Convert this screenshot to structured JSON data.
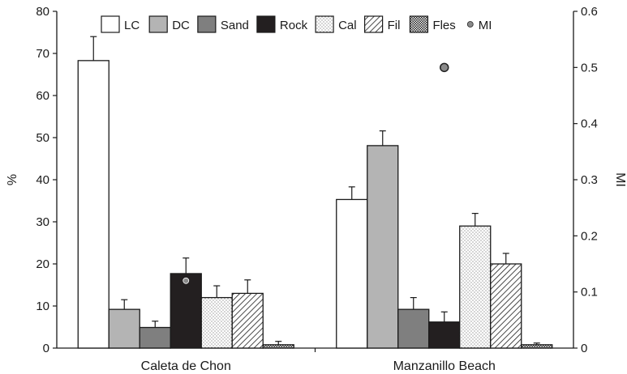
{
  "chart_data": {
    "type": "bar",
    "categories": [
      "Caleta de Chon",
      "Manzanillo Beach"
    ],
    "ylabel": "%",
    "y2label": "MI",
    "ylim": [
      0,
      80
    ],
    "y2lim": [
      0,
      0.6
    ],
    "yticks": [
      0,
      10,
      20,
      30,
      40,
      50,
      60,
      70,
      80
    ],
    "y2ticks": [
      0,
      0.1,
      0.2,
      0.3,
      0.4,
      0.5,
      0.6
    ],
    "y2tick_labels": [
      "0",
      "0.1",
      "0.2",
      "0.3",
      "0.4",
      "0.5",
      "0.6"
    ],
    "grid": false,
    "legend_position": "top",
    "series": [
      {
        "name": "LC",
        "pattern": "white",
        "values": [
          68.3,
          35.3
        ],
        "errors": [
          5.7,
          3.0
        ]
      },
      {
        "name": "DC",
        "pattern": "light-gray",
        "values": [
          9.2,
          48.1
        ],
        "errors": [
          2.3,
          3.5
        ]
      },
      {
        "name": "Sand",
        "pattern": "dark-gray",
        "values": [
          4.9,
          9.2
        ],
        "errors": [
          1.5,
          2.8
        ]
      },
      {
        "name": "Rock",
        "pattern": "black",
        "values": [
          17.7,
          6.2
        ],
        "errors": [
          3.7,
          2.4
        ]
      },
      {
        "name": "Cal",
        "pattern": "dots",
        "values": [
          12.0,
          29.0
        ],
        "errors": [
          2.8,
          3.0
        ]
      },
      {
        "name": "Fil",
        "pattern": "diagonal",
        "values": [
          13.0,
          20.0
        ],
        "errors": [
          3.2,
          2.5
        ]
      },
      {
        "name": "Fles",
        "pattern": "crosshatch",
        "values": [
          0.8,
          0.8
        ],
        "errors": [
          0.8,
          0.4
        ]
      }
    ],
    "mi": {
      "name": "MI",
      "values": [
        0.12,
        0.5
      ]
    },
    "colors": {
      "light_gray": "#b4b4b4",
      "dark_gray": "#7f7f7f",
      "black": "#231f20",
      "mi_marker": "#8a8a8a"
    }
  }
}
